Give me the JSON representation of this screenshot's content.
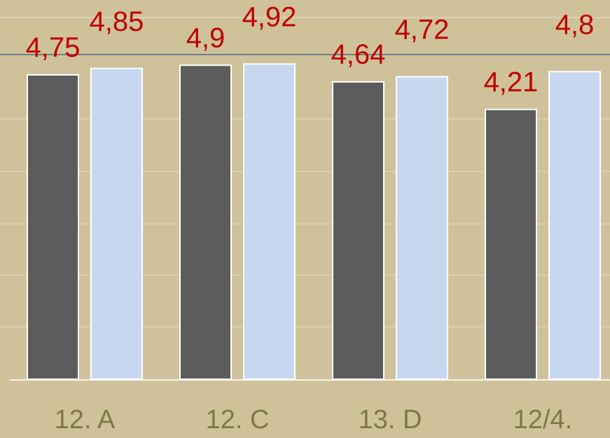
{
  "chart_data": {
    "type": "bar",
    "categories": [
      "12. A",
      "12. C",
      "13. D",
      "12/4."
    ],
    "series": [
      {
        "values": [
          4.75,
          4.9,
          4.64,
          4.21
        ],
        "color": "#5c5c5c"
      },
      {
        "values": [
          4.85,
          4.92,
          4.72,
          4.8
        ],
        "color": "#c6d8f0"
      }
    ],
    "data_labels": [
      [
        "4,75",
        "4,9",
        "4,64",
        "4,21"
      ],
      [
        "4,85",
        "4,92",
        "4,72",
        "4,8"
      ]
    ],
    "title": "",
    "xlabel": "",
    "ylabel": "",
    "ylim": [
      0,
      5.7
    ],
    "grid": true,
    "legend": "none",
    "colors": {
      "background": "#cfc29b",
      "label_text": "#c00000",
      "category_text": "#7c7a46"
    }
  }
}
